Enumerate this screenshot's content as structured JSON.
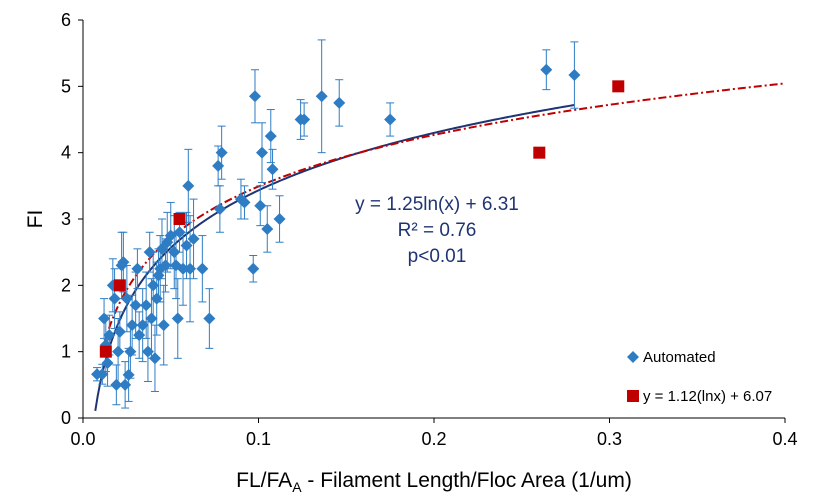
{
  "chart_data": {
    "type": "scatter",
    "xlabel": {
      "main": "FL/FA",
      "subscript": "A",
      "rest": " - Filament Length/Floc Area (1/um)"
    },
    "ylabel": "FI",
    "xlim": [
      0,
      0.4
    ],
    "ylim": [
      0,
      6
    ],
    "xticks": [
      {
        "value": 0,
        "label": "0.0"
      },
      0.1,
      0.2,
      0.3,
      0.4
    ],
    "yticks": [
      0,
      1,
      2,
      3,
      4,
      5,
      6
    ],
    "grid": false,
    "legend": "lower right",
    "annotation": [
      "y = 1.25ln(x) + 6.31",
      "R² = 0.76",
      "p<0.01"
    ],
    "series": [
      {
        "name": "Automated",
        "color": "#2E7DC4",
        "marker": "diamond",
        "x": [
          0.008,
          0.011,
          0.012,
          0.013,
          0.014,
          0.015,
          0.017,
          0.018,
          0.019,
          0.02,
          0.021,
          0.022,
          0.023,
          0.024,
          0.025,
          0.026,
          0.027,
          0.028,
          0.03,
          0.031,
          0.032,
          0.034,
          0.036,
          0.037,
          0.038,
          0.039,
          0.04,
          0.041,
          0.042,
          0.043,
          0.044,
          0.045,
          0.046,
          0.047,
          0.048,
          0.05,
          0.052,
          0.053,
          0.054,
          0.055,
          0.057,
          0.059,
          0.06,
          0.061,
          0.063,
          0.068,
          0.072,
          0.077,
          0.078,
          0.079,
          0.09,
          0.092,
          0.097,
          0.098,
          0.101,
          0.102,
          0.105,
          0.107,
          0.108,
          0.112,
          0.124,
          0.126,
          0.136,
          0.146,
          0.175,
          0.264,
          0.28
        ],
        "values": [
          0.66,
          0.66,
          1.5,
          1.1,
          0.83,
          1.25,
          2.0,
          1.8,
          0.5,
          1.0,
          1.3,
          2.3,
          2.35,
          0.5,
          1.8,
          0.65,
          1.0,
          1.4,
          1.7,
          2.25,
          1.25,
          1.4,
          1.7,
          1.0,
          2.5,
          1.5,
          2.0,
          0.9,
          1.8,
          2.15,
          2.25,
          2.55,
          1.4,
          2.3,
          2.65,
          2.75,
          2.5,
          2.3,
          1.5,
          2.8,
          2.25,
          2.6,
          3.5,
          2.25,
          2.7,
          2.25,
          1.5,
          3.8,
          3.15,
          4.0,
          3.3,
          3.25,
          2.25,
          4.85,
          3.2,
          4.0,
          2.85,
          4.25,
          3.75,
          3.0,
          4.5,
          4.5,
          4.85,
          4.75,
          4.5,
          5.25,
          5.17
        ],
        "errors": [
          0.1,
          0.15,
          0.3,
          0.4,
          0.35,
          0.3,
          0.4,
          0.45,
          0.3,
          0.5,
          0.3,
          0.5,
          0.45,
          0.35,
          0.5,
          0.4,
          0.4,
          0.45,
          0.5,
          0.3,
          0.35,
          0.55,
          0.5,
          0.45,
          0.3,
          0.6,
          0.5,
          0.5,
          0.55,
          0.4,
          0.5,
          0.45,
          0.6,
          0.4,
          0.45,
          0.5,
          0.55,
          0.5,
          0.6,
          0.3,
          0.55,
          0.5,
          0.55,
          0.8,
          0.6,
          0.5,
          0.45,
          0.3,
          0.35,
          0.4,
          0.3,
          0.25,
          0.2,
          0.4,
          0.3,
          0.45,
          0.35,
          0.4,
          0.3,
          0.35,
          0.3,
          0.25,
          0.85,
          0.35,
          0.25,
          0.3,
          0.5
        ]
      },
      {
        "name": "y = 1.12(lnx) + 6.07",
        "color": "#C00000",
        "marker": "square",
        "x": [
          0.013,
          0.021,
          0.055,
          0.26,
          0.305
        ],
        "values": [
          1,
          2,
          3,
          4,
          5
        ]
      }
    ],
    "fits": [
      {
        "a": 1.25,
        "b": 6.31,
        "x_range": [
          0.007,
          0.28
        ],
        "color": "#1F3473",
        "style": "solid"
      },
      {
        "a": 1.12,
        "b": 6.07,
        "x_range": [
          0.012,
          0.4
        ],
        "color": "#C00000",
        "style": "dash-dot"
      }
    ]
  }
}
